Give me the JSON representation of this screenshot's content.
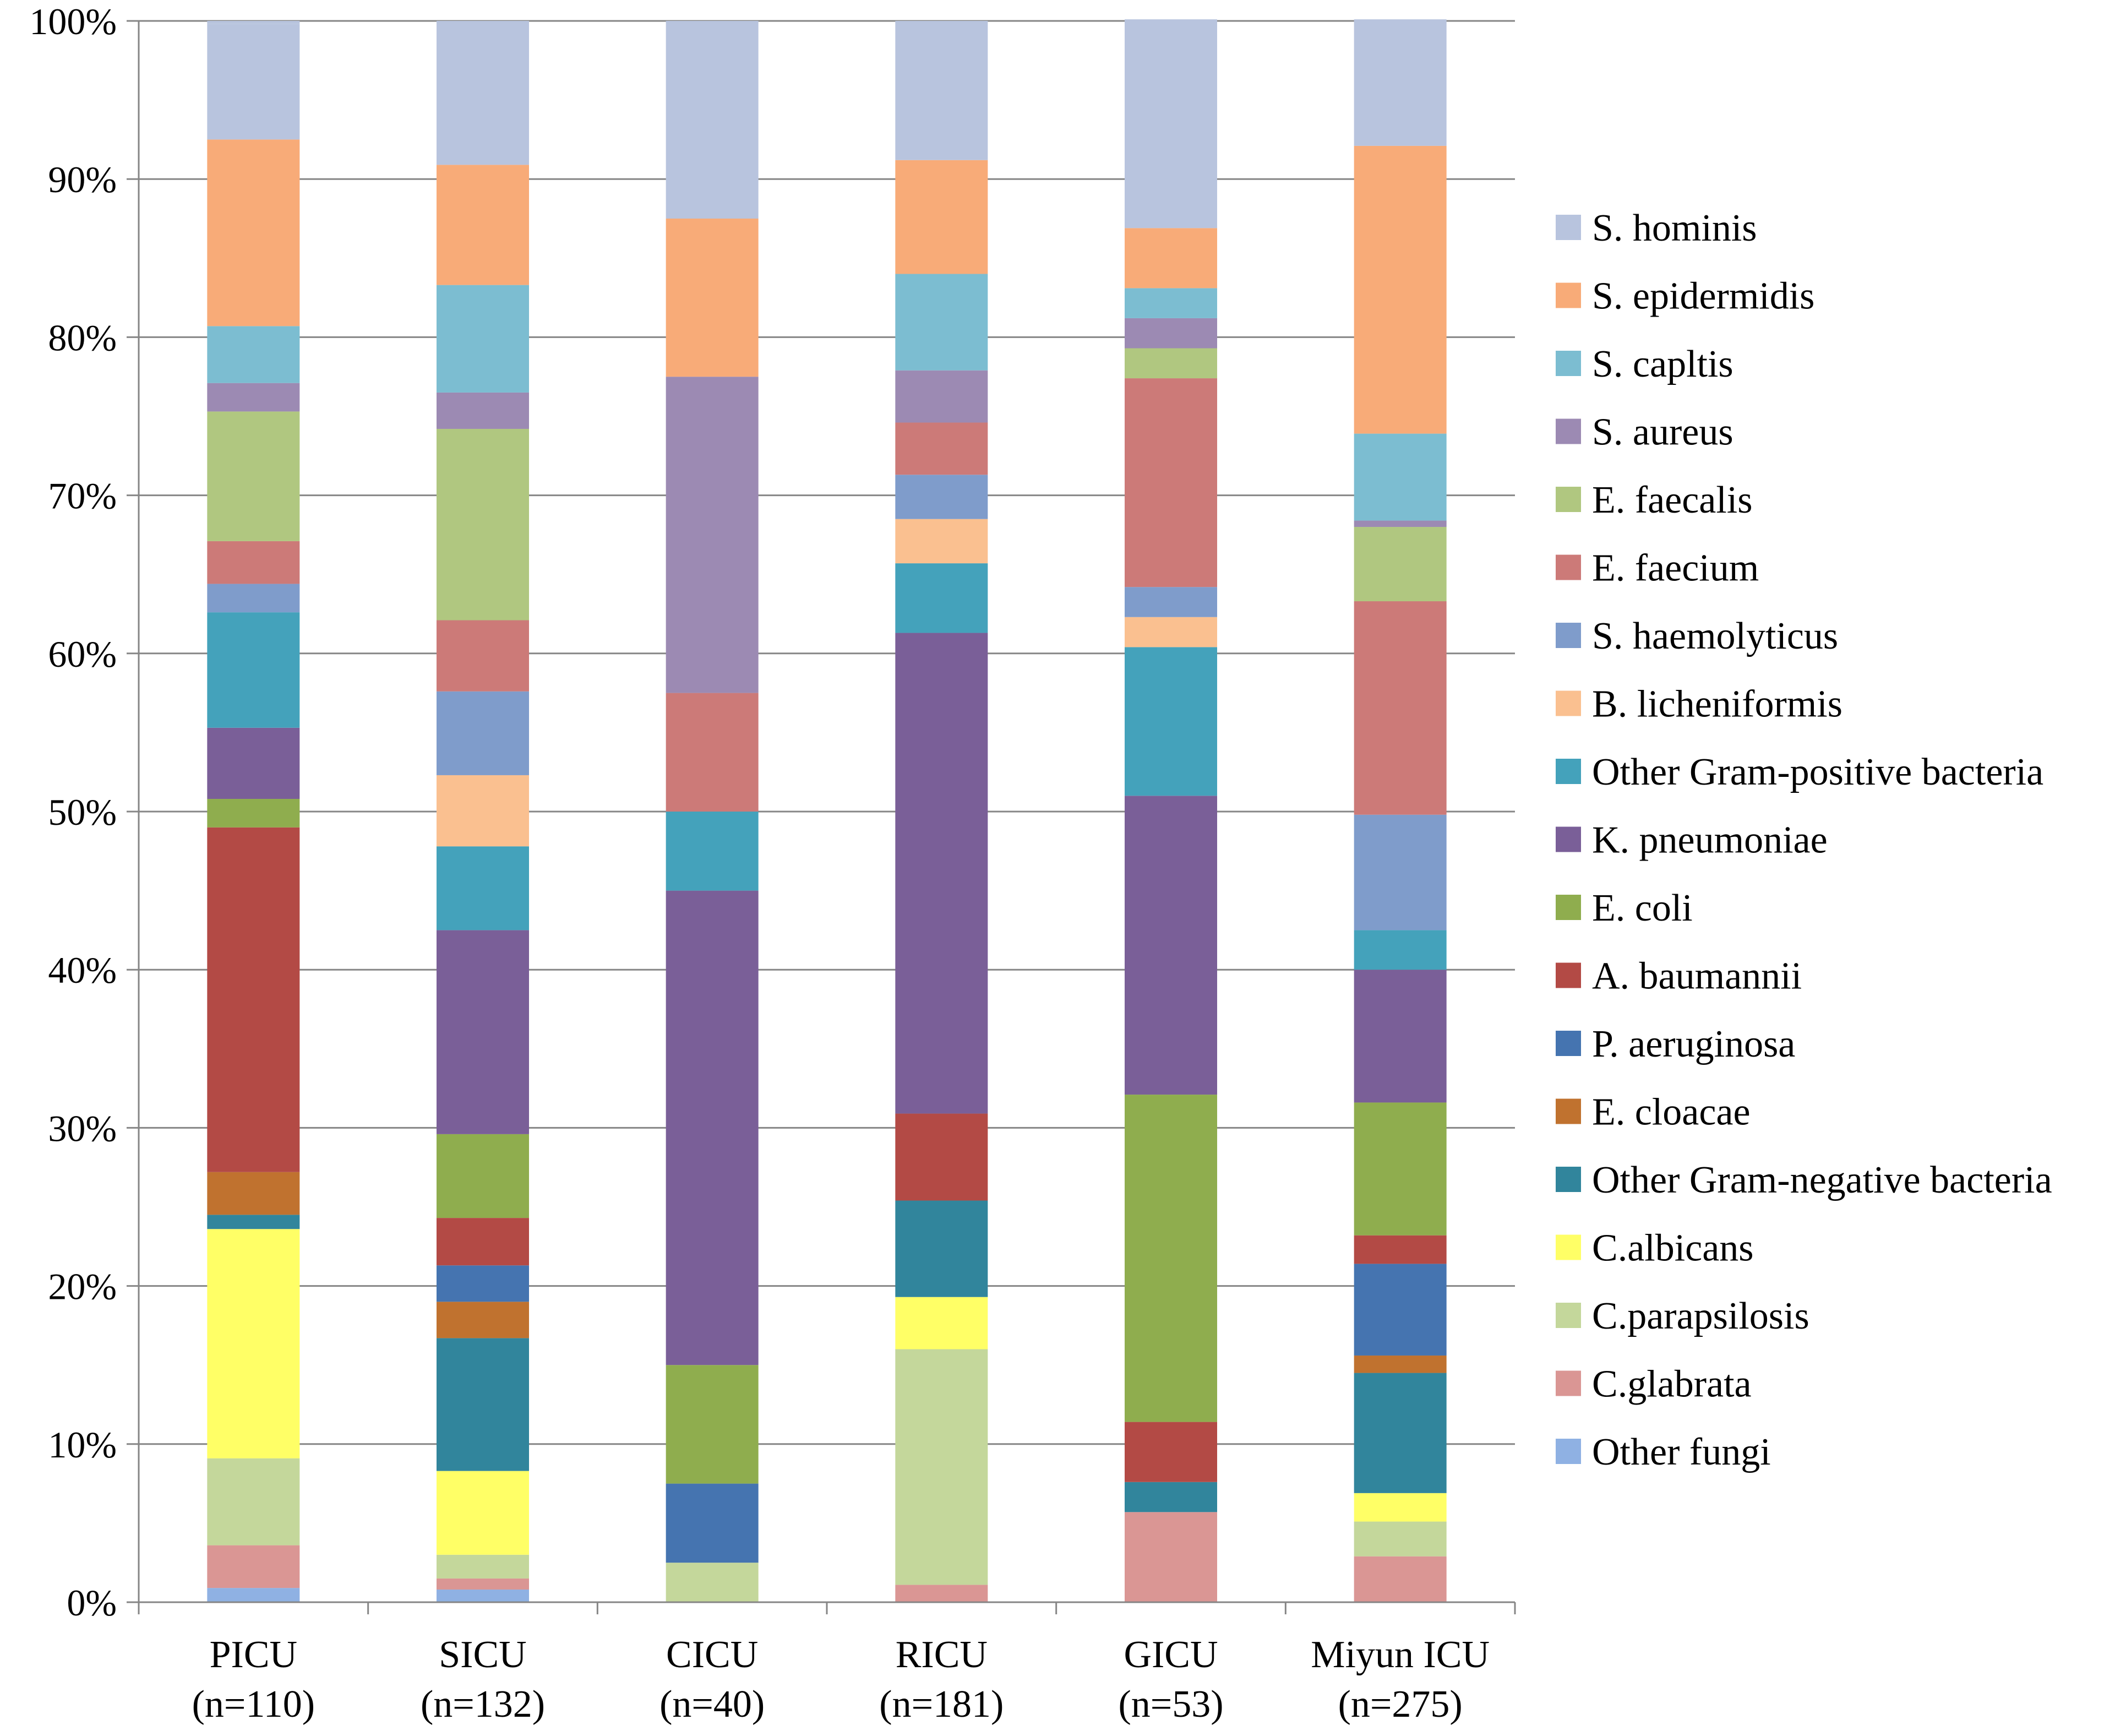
{
  "chart_data": {
    "type": "bar",
    "stacked": true,
    "percent": true,
    "title": "",
    "xlabel": "",
    "ylabel": "",
    "ylim": [
      0,
      100
    ],
    "y_ticks": [
      "0%",
      "10%",
      "20%",
      "30%",
      "40%",
      "50%",
      "60%",
      "70%",
      "80%",
      "90%",
      "100%"
    ],
    "grid": true,
    "legend_position": "right",
    "categories": [
      {
        "name": "PICU",
        "n": "(n=110)"
      },
      {
        "name": "SICU",
        "n": "(n=132)"
      },
      {
        "name": "CICU",
        "n": "(n=40)"
      },
      {
        "name": "RICU",
        "n": "(n=181)"
      },
      {
        "name": "GICU",
        "n": "(n=53)"
      },
      {
        "name": "Miyun ICU",
        "n": "(n=275)"
      }
    ],
    "series": [
      {
        "name": "Other fungi",
        "color": "#8FB1E3",
        "values": [
          0.9,
          0.8,
          0,
          0,
          0,
          0
        ]
      },
      {
        "name": "C.glabrata",
        "color": "#DA9694",
        "values": [
          2.7,
          0.7,
          0,
          1.1,
          5.7,
          2.9
        ]
      },
      {
        "name": "C.parapsilosis",
        "color": "#C4D79B",
        "values": [
          5.5,
          1.5,
          2.5,
          14.9,
          0,
          2.2
        ]
      },
      {
        "name": "C.albicans",
        "color": "#FFFF66",
        "values": [
          14.5,
          5.3,
          0,
          3.3,
          0,
          1.8
        ]
      },
      {
        "name": "Other Gram-negative bacteria",
        "color": "#31859C",
        "values": [
          0.9,
          8.4,
          0,
          6.1,
          1.9,
          7.6
        ]
      },
      {
        "name": "E. cloacae",
        "color": "#C0722F",
        "values": [
          2.7,
          2.3,
          0,
          0,
          0,
          1.1
        ]
      },
      {
        "name": "P. aeruginosa",
        "color": "#4574B0",
        "values": [
          0,
          2.3,
          5.0,
          0,
          0,
          5.8
        ]
      },
      {
        "name": "A. baumannii",
        "color": "#B34A45",
        "values": [
          21.8,
          3.0,
          0,
          5.5,
          3.8,
          1.8
        ]
      },
      {
        "name": "E. coli",
        "color": "#8FAD4E",
        "values": [
          1.8,
          5.3,
          7.5,
          0,
          20.7,
          8.4
        ]
      },
      {
        "name": "K. pneumoniae",
        "color": "#7A5F98",
        "values": [
          4.5,
          12.9,
          30.0,
          30.4,
          18.9,
          8.4
        ]
      },
      {
        "name": "Other Gram-positive bacteria",
        "color": "#44A2BB",
        "values": [
          7.3,
          5.3,
          5.0,
          4.4,
          9.4,
          2.5
        ]
      },
      {
        "name": "B. licheniformis",
        "color": "#FAC090",
        "values": [
          0,
          4.5,
          0,
          2.8,
          1.9,
          0
        ]
      },
      {
        "name": "S. haemolyticus",
        "color": "#7F9CCB",
        "values": [
          1.8,
          5.3,
          0,
          2.8,
          1.9,
          7.3
        ]
      },
      {
        "name": "E. faecium",
        "color": "#CC7A78",
        "values": [
          2.7,
          4.5,
          7.5,
          3.3,
          13.2,
          13.5
        ]
      },
      {
        "name": "E. faecalis",
        "color": "#B0C780",
        "values": [
          8.2,
          12.1,
          0,
          0,
          1.9,
          4.7
        ]
      },
      {
        "name": "S. aureus",
        "color": "#9C8AB3",
        "values": [
          1.8,
          2.3,
          20.0,
          3.3,
          1.9,
          0.4
        ]
      },
      {
        "name": "S. capltis",
        "color": "#7CBDD1",
        "values": [
          3.6,
          6.8,
          0,
          6.1,
          1.9,
          5.5
        ]
      },
      {
        "name": "S. epidermidis",
        "color": "#F8AB78",
        "values": [
          11.8,
          7.6,
          10.0,
          7.2,
          3.8,
          18.2
        ]
      },
      {
        "name": "S. hominis",
        "color": "#B8C4DE",
        "values": [
          7.3,
          9.1,
          12.5,
          8.8,
          13.2,
          8.0
        ]
      }
    ],
    "legend_order": [
      "S. hominis",
      "S. epidermidis",
      "S. capltis",
      "S. aureus",
      "E. faecalis",
      "E. faecium",
      "S. haemolyticus",
      "B. licheniformis",
      "Other Gram-positive bacteria",
      "K. pneumoniae",
      "E. coli",
      "A. baumannii",
      "P. aeruginosa",
      "E. cloacae",
      "Other Gram-negative bacteria",
      "C.albicans",
      "C.parapsilosis",
      "C.glabrata",
      "Other fungi"
    ],
    "axis_color": "#868686",
    "grid_color": "#868686"
  }
}
